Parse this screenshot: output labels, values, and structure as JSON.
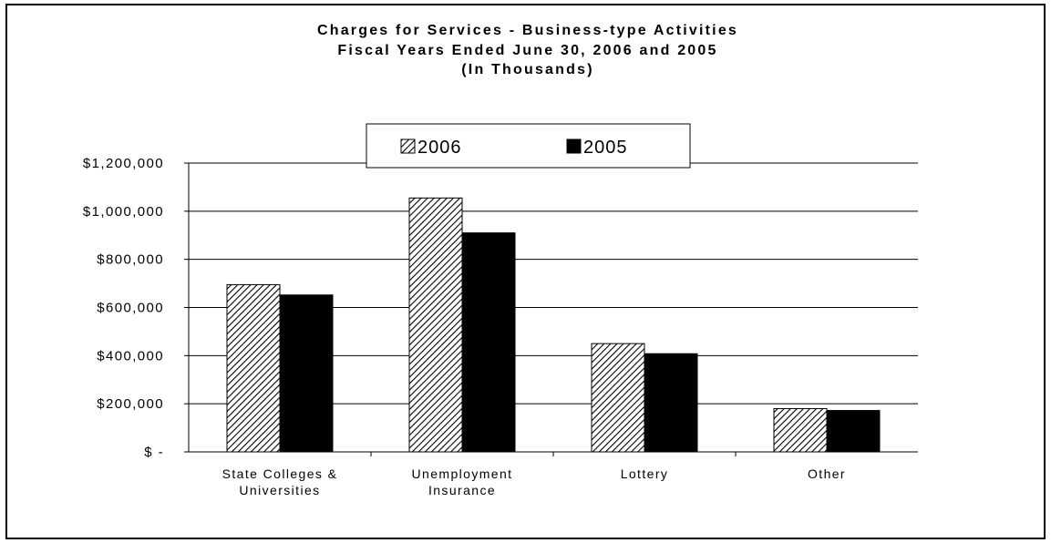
{
  "chart_data": {
    "type": "bar",
    "title": [
      "Charges for Services - Business-type Activities",
      "Fiscal Years Ended June 30, 2006 and 2005",
      "(In Thousands)"
    ],
    "categories": [
      [
        "State Colleges &",
        "Universities"
      ],
      [
        "Unemployment",
        "Insurance"
      ],
      [
        "Lottery"
      ],
      [
        "Other"
      ]
    ],
    "series": [
      {
        "name": "2006",
        "values": [
          695000,
          1055000,
          450000,
          180000
        ],
        "fill": "hatch"
      },
      {
        "name": "2005",
        "values": [
          652000,
          910000,
          408000,
          172000
        ],
        "fill": "#000000"
      }
    ],
    "y_ticks": [
      {
        "value": 0,
        "label": "$ -"
      },
      {
        "value": 200000,
        "label": "$200,000"
      },
      {
        "value": 400000,
        "label": "$400,000"
      },
      {
        "value": 600000,
        "label": "$600,000"
      },
      {
        "value": 800000,
        "label": "$800,000"
      },
      {
        "value": 1000000,
        "label": "$1,000,000"
      },
      {
        "value": 1200000,
        "label": "$1,200,000"
      }
    ],
    "ylim": [
      0,
      1200000
    ],
    "xlabel": "",
    "ylabel": "",
    "grid": true,
    "legend_position": "top-center"
  }
}
